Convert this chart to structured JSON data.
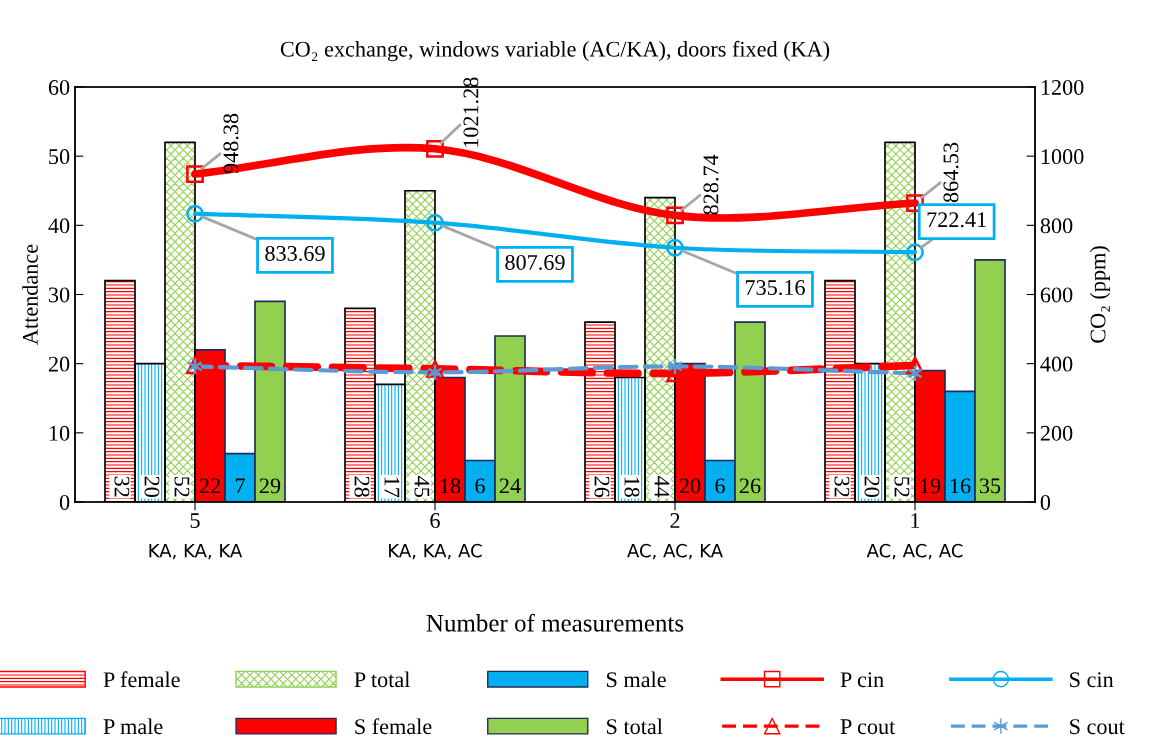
{
  "chart_data": {
    "type": "bar",
    "title": "CO₂ exchange, windows variable (AC/KA), doors fixed (KA)",
    "xlabel": "Number of measurements",
    "ylabel": "Attendance",
    "y2label": "CO₂ (ppm)",
    "categories": [
      "5\nKA, KA, KA",
      "6\nKA, KA, AC",
      "2\nAC, AC, KA",
      "1\nAC, AC, AC"
    ],
    "ylim": [
      0,
      60
    ],
    "yticks": [
      0,
      10,
      20,
      30,
      40,
      50,
      60
    ],
    "y2lim": [
      0,
      1200
    ],
    "y2ticks": [
      0,
      200,
      400,
      600,
      800,
      1000,
      1200
    ],
    "grid": false,
    "legend": "bottom",
    "data_labels": true,
    "series": [
      {
        "name": "P female",
        "color": "#ff0000",
        "values": [
          32,
          28,
          26,
          32
        ]
      },
      {
        "name": "P male",
        "color": "#00b0f0",
        "values": [
          20,
          17,
          18,
          20
        ]
      },
      {
        "name": "P total",
        "color": "#92d050",
        "values": [
          52,
          45,
          44,
          52
        ]
      },
      {
        "name": "S female",
        "color": "#ff0000",
        "values": [
          22,
          18,
          20,
          19
        ]
      },
      {
        "name": "S male",
        "color": "#00b0f0",
        "values": [
          7,
          6,
          6,
          16
        ]
      },
      {
        "name": "S total",
        "color": "#92d050",
        "values": [
          29,
          24,
          26,
          35
        ]
      },
      {
        "name": "P cin",
        "type": "line",
        "axis": "y2",
        "color": "#ff0000",
        "marker": "square",
        "line_style": "solid",
        "values": [
          948.38,
          1021.28,
          828.74,
          864.53
        ]
      },
      {
        "name": "P cout",
        "type": "line",
        "axis": "y2",
        "color": "#ff0000",
        "marker": "triangle",
        "line_style": "dashed",
        "values": [
          395,
          385,
          372,
          395
        ],
        "value_labels": [
          null,
          null,
          null,
          null
        ]
      },
      {
        "name": "S cin",
        "type": "line",
        "axis": "y2",
        "color": "#00b0f0",
        "marker": "circle",
        "line_style": "solid",
        "values": [
          833.69,
          807.69,
          735.16,
          722.41
        ]
      },
      {
        "name": "S cout",
        "type": "line",
        "axis": "y2",
        "color": "#5b9bd5",
        "marker": "cross",
        "line_style": "dashed",
        "values": [
          392,
          375,
          392,
          372
        ],
        "value_labels": [
          null,
          null,
          null,
          null
        ]
      }
    ]
  }
}
